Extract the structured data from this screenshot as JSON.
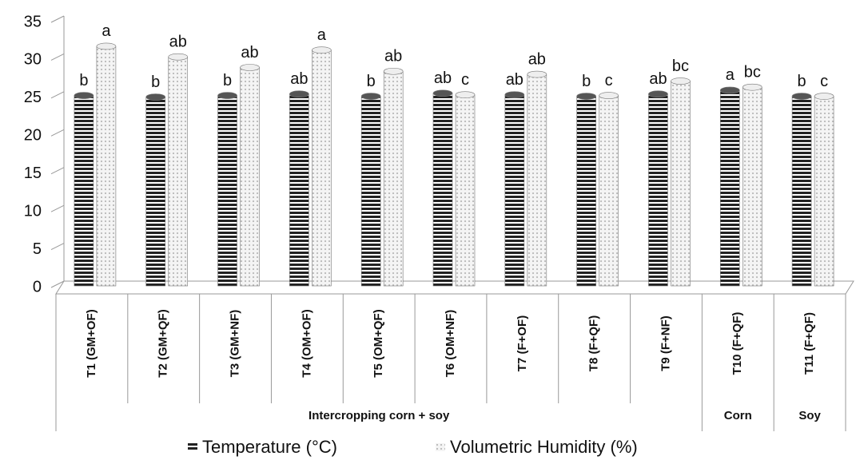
{
  "chart_data": {
    "type": "bar",
    "categories": [
      "T1 (GM+OF)",
      "T2 (GM+QF)",
      "T3 (GM+NF)",
      "T4 (OM+OF)",
      "T5 (OM+QF)",
      "T6 (OM+NF)",
      "T7 (F+OF)",
      "T8 (F+QF)",
      "T9 (F+NF)",
      "T10 (F+QF)",
      "T11 (F+QF)"
    ],
    "groups": [
      {
        "label": "Intercropping corn + soy",
        "span": 9
      },
      {
        "label": "Corn",
        "span": 1
      },
      {
        "label": "Soy",
        "span": 1
      }
    ],
    "series": [
      {
        "name": "Temperature (°C)",
        "color": "#222222",
        "values": [
          24.5,
          24.3,
          24.5,
          24.7,
          24.4,
          24.8,
          24.6,
          24.4,
          24.7,
          25.2,
          24.4
        ],
        "letters": [
          "b",
          "b",
          "b",
          "ab",
          "b",
          "ab",
          "ab",
          "b",
          "ab",
          "a",
          "b"
        ]
      },
      {
        "name": "Volumetric Humidity (%)",
        "color": "#bbbbbb",
        "values": [
          31,
          29.6,
          28.2,
          30.5,
          27.7,
          24.6,
          27.3,
          24.5,
          26.4,
          25.6,
          24.4
        ],
        "letters": [
          "a",
          "ab",
          "ab",
          "a",
          "ab",
          "c",
          "ab",
          "c",
          "bc",
          "bc",
          "c"
        ]
      }
    ],
    "ylim": [
      0,
      35
    ],
    "yticks": [
      0,
      5,
      10,
      15,
      20,
      25,
      30,
      35
    ]
  }
}
